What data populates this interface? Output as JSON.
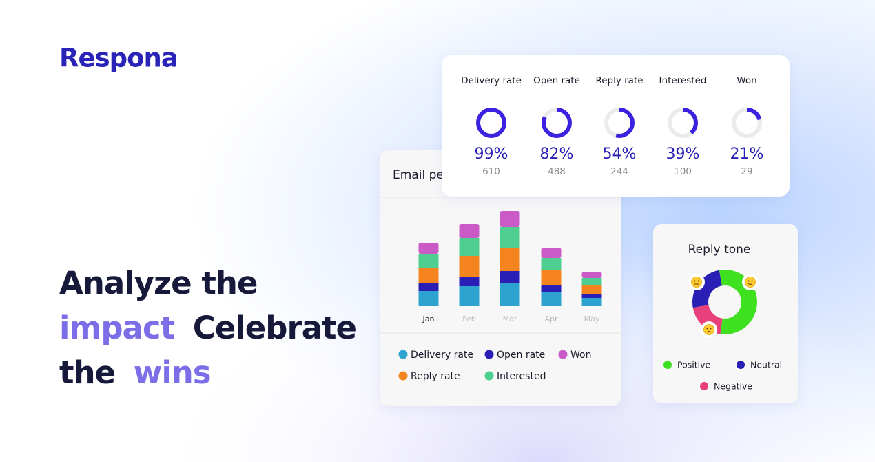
{
  "brand": "Respona",
  "headline": {
    "line1": "Analyze the",
    "highlight1": "impact",
    "line2": "Celebrate",
    "line3": "the",
    "highlight2": "wins"
  },
  "chart_data": [
    {
      "type": "ring",
      "categories": [
        "Delivery rate",
        "Open rate",
        "Reply rate",
        "Interested",
        "Won"
      ],
      "values": [
        99,
        82,
        54,
        39,
        21
      ],
      "value_labels": [
        "99%",
        "82%",
        "54%",
        "39%",
        "21%"
      ],
      "counts": [
        610,
        488,
        244,
        100,
        29
      ],
      "color": "#3b22e0"
    },
    {
      "type": "bar",
      "stacked": true,
      "title": "Email performance",
      "categories": [
        "Jan",
        "Feb",
        "Mar",
        "Apr",
        "May"
      ],
      "ylim": [
        0,
        150
      ],
      "series": [
        {
          "name": "Delivery rate",
          "color": "#2ea3d0",
          "values": [
            22,
            29,
            34,
            21,
            12
          ]
        },
        {
          "name": "Open rate",
          "color": "#2a1fb5",
          "values": [
            11,
            14,
            17,
            10,
            6
          ]
        },
        {
          "name": "Reply rate",
          "color": "#f5841f",
          "values": [
            23,
            30,
            34,
            21,
            13
          ]
        },
        {
          "name": "Interested",
          "color": "#4fcf8f",
          "values": [
            20,
            26,
            30,
            18,
            10
          ]
        },
        {
          "name": "Won",
          "color": "#c95ac6",
          "values": [
            16,
            20,
            23,
            15,
            9
          ]
        }
      ]
    },
    {
      "type": "donut",
      "title": "Reply tone",
      "categories": [
        "Positive",
        "Neutral",
        "Negative"
      ],
      "values": [
        55,
        25,
        20
      ],
      "colors": [
        "#3fe01f",
        "#2a1fb5",
        "#e8407a"
      ]
    }
  ]
}
